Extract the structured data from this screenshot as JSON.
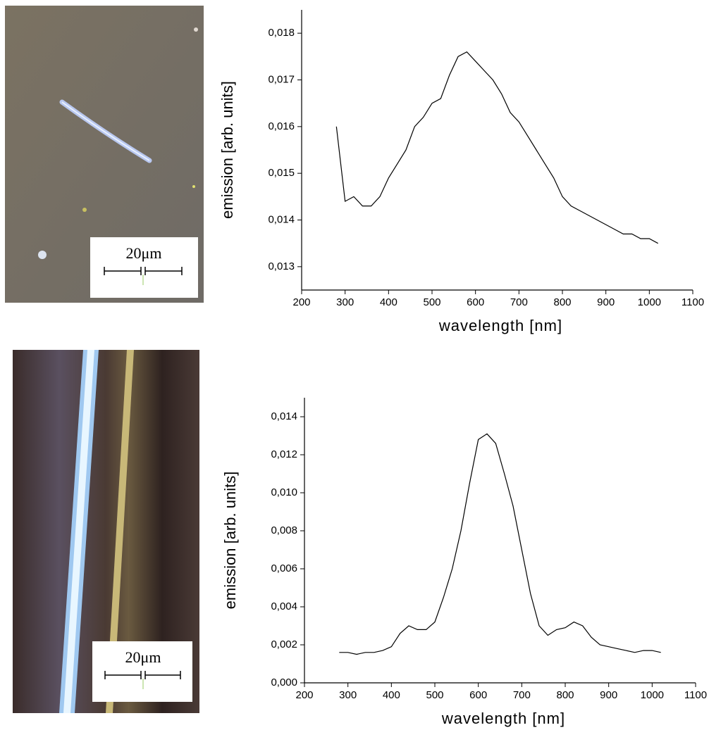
{
  "images": [
    {
      "scale_label": "20μm"
    },
    {
      "scale_label": "20μm"
    }
  ],
  "chart_data": [
    {
      "type": "line",
      "x_label": "wavelength [nm]",
      "y_label": "emission [arb. units]",
      "xlim": [
        200,
        1100
      ],
      "xticks": [
        200,
        300,
        400,
        500,
        600,
        700,
        800,
        900,
        1000,
        1100
      ],
      "ylim": [
        0.0125,
        0.0185
      ],
      "yticks": [
        {
          "value": 0.013,
          "label": "0,013"
        },
        {
          "value": 0.014,
          "label": "0,014"
        },
        {
          "value": 0.015,
          "label": "0,015"
        },
        {
          "value": 0.016,
          "label": "0,016"
        },
        {
          "value": 0.017,
          "label": "0,017"
        },
        {
          "value": 0.018,
          "label": "0,018"
        }
      ],
      "x": [
        280,
        300,
        320,
        340,
        360,
        380,
        400,
        420,
        440,
        460,
        480,
        500,
        520,
        540,
        560,
        580,
        600,
        620,
        640,
        660,
        680,
        700,
        720,
        740,
        760,
        780,
        800,
        820,
        840,
        860,
        880,
        900,
        920,
        940,
        960,
        980,
        1000,
        1020
      ],
      "series": [
        {
          "color": "#000000",
          "values": [
            0.016,
            0.0144,
            0.0145,
            0.0143,
            0.0143,
            0.0145,
            0.0149,
            0.0152,
            0.0155,
            0.016,
            0.0162,
            0.0165,
            0.0166,
            0.0171,
            0.0175,
            0.0176,
            0.0174,
            0.0172,
            0.017,
            0.0167,
            0.0163,
            0.0161,
            0.0158,
            0.0155,
            0.0152,
            0.0149,
            0.0145,
            0.0143,
            0.0142,
            0.0141,
            0.014,
            0.0139,
            0.0138,
            0.0137,
            0.0137,
            0.0136,
            0.0136,
            0.0135
          ]
        }
      ]
    },
    {
      "type": "line",
      "x_label": "wavelength [nm]",
      "y_label": "emission [arb. units]",
      "xlim": [
        200,
        1100
      ],
      "xticks": [
        200,
        300,
        400,
        500,
        600,
        700,
        800,
        900,
        1000,
        1100
      ],
      "ylim": [
        0,
        0.015
      ],
      "yticks": [
        {
          "value": 0,
          "label": "0,000"
        },
        {
          "value": 0.002,
          "label": "0,002"
        },
        {
          "value": 0.004,
          "label": "0,004"
        },
        {
          "value": 0.006,
          "label": "0,006"
        },
        {
          "value": 0.008,
          "label": "0,008"
        },
        {
          "value": 0.01,
          "label": "0,010"
        },
        {
          "value": 0.012,
          "label": "0,012"
        },
        {
          "value": 0.014,
          "label": "0,014"
        }
      ],
      "x": [
        280,
        300,
        320,
        340,
        360,
        380,
        400,
        420,
        440,
        460,
        480,
        500,
        520,
        540,
        560,
        580,
        600,
        620,
        640,
        660,
        680,
        700,
        720,
        740,
        760,
        780,
        800,
        820,
        840,
        860,
        880,
        900,
        920,
        940,
        960,
        980,
        1000,
        1020
      ],
      "series": [
        {
          "color": "#000000",
          "values": [
            0.0016,
            0.0016,
            0.0015,
            0.0016,
            0.0016,
            0.0017,
            0.0019,
            0.0026,
            0.003,
            0.0028,
            0.0028,
            0.0032,
            0.0045,
            0.006,
            0.008,
            0.0105,
            0.0128,
            0.0131,
            0.0126,
            0.011,
            0.0093,
            0.007,
            0.0047,
            0.003,
            0.0025,
            0.0028,
            0.0029,
            0.0032,
            0.003,
            0.0024,
            0.002,
            0.0019,
            0.0018,
            0.0017,
            0.0016,
            0.0017,
            0.0017,
            0.0016
          ]
        }
      ]
    }
  ]
}
